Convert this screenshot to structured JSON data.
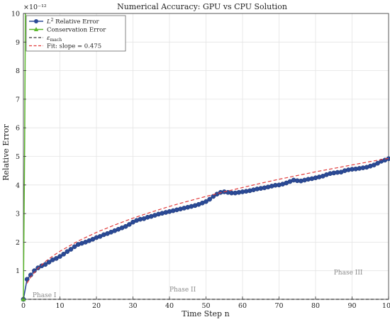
{
  "chart_data": {
    "type": "line",
    "title": "Numerical Accuracy: GPU vs CPU Solution",
    "xlabel": "Time Step n",
    "ylabel": "Relative Error",
    "xlim": [
      0,
      100
    ],
    "ylim": [
      0,
      10
    ],
    "y_exponent_label": "×10⁻¹²",
    "x_ticks": [
      0,
      10,
      20,
      30,
      40,
      50,
      60,
      70,
      80,
      90,
      100
    ],
    "y_ticks": [
      1,
      2,
      3,
      4,
      5,
      6,
      7,
      8,
      9,
      10
    ],
    "grid": true,
    "legend_position": "top-left",
    "legend": [
      {
        "label_main": "L",
        "label_sup": "2",
        "label_rest": " Relative Error",
        "color": "#2b4a96",
        "style": "line-marker"
      },
      {
        "label_main": "Conservation Error",
        "color": "#5cb82e",
        "style": "line-triangle"
      },
      {
        "label_main": "ε",
        "label_sub": "mach",
        "color": "#333333",
        "style": "dashed"
      },
      {
        "label_main": "Fit: slope = 0.475",
        "color": "#e03a3a",
        "style": "dashed"
      }
    ],
    "series": [
      {
        "name": "L² Relative Error",
        "color": "#2b4a96",
        "x": [
          0,
          1,
          2,
          3,
          4,
          5,
          6,
          7,
          8,
          9,
          10,
          11,
          12,
          13,
          14,
          15,
          16,
          17,
          18,
          19,
          20,
          21,
          22,
          23,
          24,
          25,
          26,
          27,
          28,
          29,
          30,
          31,
          32,
          33,
          34,
          35,
          36,
          37,
          38,
          39,
          40,
          41,
          42,
          43,
          44,
          45,
          46,
          47,
          48,
          49,
          50,
          51,
          52,
          53,
          54,
          55,
          56,
          57,
          58,
          59,
          60,
          61,
          62,
          63,
          64,
          65,
          66,
          67,
          68,
          69,
          70,
          71,
          72,
          73,
          74,
          75,
          76,
          77,
          78,
          79,
          80,
          81,
          82,
          83,
          84,
          85,
          86,
          87,
          88,
          89,
          90,
          91,
          92,
          93,
          94,
          95,
          96,
          97,
          98,
          99,
          100
        ],
        "y": [
          0.0,
          0.7,
          0.85,
          1.0,
          1.1,
          1.17,
          1.22,
          1.3,
          1.38,
          1.43,
          1.5,
          1.58,
          1.67,
          1.75,
          1.84,
          1.92,
          1.96,
          2.0,
          2.05,
          2.1,
          2.16,
          2.2,
          2.26,
          2.3,
          2.35,
          2.4,
          2.45,
          2.5,
          2.55,
          2.62,
          2.7,
          2.76,
          2.8,
          2.82,
          2.87,
          2.9,
          2.94,
          2.98,
          3.01,
          3.04,
          3.07,
          3.1,
          3.13,
          3.16,
          3.19,
          3.22,
          3.25,
          3.28,
          3.32,
          3.37,
          3.42,
          3.5,
          3.6,
          3.68,
          3.74,
          3.76,
          3.74,
          3.72,
          3.72,
          3.74,
          3.76,
          3.78,
          3.8,
          3.83,
          3.86,
          3.88,
          3.9,
          3.93,
          3.96,
          3.99,
          4.0,
          4.03,
          4.07,
          4.12,
          4.17,
          4.15,
          4.14,
          4.17,
          4.2,
          4.22,
          4.25,
          4.28,
          4.31,
          4.36,
          4.4,
          4.42,
          4.44,
          4.45,
          4.5,
          4.53,
          4.55,
          4.56,
          4.58,
          4.6,
          4.62,
          4.66,
          4.7,
          4.76,
          4.83,
          4.87,
          4.92
        ]
      },
      {
        "name": "Conservation Error",
        "color": "#5cb82e",
        "x": [
          0,
          0.35,
          0.55
        ],
        "y": [
          0,
          5.5,
          10
        ]
      },
      {
        "name": "ε_mach",
        "color": "#333333",
        "x": [
          0,
          100
        ],
        "y": [
          0.0002,
          0.0002
        ]
      },
      {
        "name": "Fit: slope = 0.475",
        "color": "#e03a3a",
        "x": [
          1,
          2,
          4,
          6,
          8,
          10,
          15,
          20,
          25,
          30,
          35,
          40,
          45,
          50,
          55,
          60,
          65,
          70,
          75,
          80,
          85,
          90,
          95,
          100
        ],
        "y": [
          0.56,
          0.78,
          1.08,
          1.32,
          1.51,
          1.68,
          2.04,
          2.34,
          2.6,
          2.84,
          3.05,
          3.25,
          3.43,
          3.6,
          3.76,
          3.91,
          4.06,
          4.2,
          4.33,
          4.46,
          4.58,
          4.7,
          4.82,
          4.93
        ]
      }
    ],
    "annotations": [
      {
        "text": "Phase I",
        "x": 2.5,
        "y": 0.0
      },
      {
        "text": "Phase II",
        "x": 40,
        "y": 0.2
      },
      {
        "text": "Phase III",
        "x": 85,
        "y": 0.8
      }
    ]
  }
}
